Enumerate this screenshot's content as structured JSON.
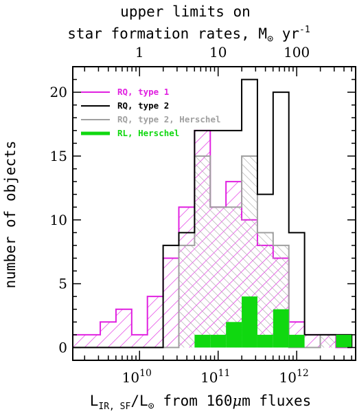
{
  "chart_data": {
    "type": "bar",
    "title_top_line1": "upper limits on",
    "title_top_line2": "star formation rates, M",
    "title_top_sun": "⊙",
    "title_top_unit": " yr",
    "title_top_exp": "-1",
    "xlabel_main": "L",
    "xlabel_sub": "IR, SF",
    "xlabel_mid": "/L",
    "xlabel_sun": "⊙",
    "xlabel_rest": " from 160",
    "xlabel_mu": "μ",
    "xlabel_end": "m fluxes",
    "ylabel": "number of objects",
    "x_scale": "log",
    "xlim_log10": [
      9.15,
      12.75
    ],
    "ylim": [
      -1,
      22
    ],
    "yticks": [
      0,
      5,
      10,
      15,
      20
    ],
    "xticks_bottom": [
      {
        "log10": 10,
        "base": "10",
        "exp": "10"
      },
      {
        "log10": 11,
        "base": "10",
        "exp": "11"
      },
      {
        "log10": 12,
        "base": "10",
        "exp": "12"
      }
    ],
    "xticks_top": [
      {
        "sfr": 1,
        "label": "1"
      },
      {
        "sfr": 10,
        "label": "10"
      },
      {
        "sfr": 100,
        "label": "100"
      }
    ],
    "bin_edges_log10": [
      9.1,
      9.3,
      9.5,
      9.7,
      9.9,
      10.1,
      10.3,
      10.5,
      10.7,
      10.9,
      11.1,
      11.3,
      11.5,
      11.7,
      11.9,
      12.1,
      12.3,
      12.5,
      12.7
    ],
    "legend_position": "top-left",
    "series": [
      {
        "name": "RQ, type 1",
        "color": "#e020e0",
        "fill": "hatch-pink",
        "values": [
          1,
          1,
          2,
          3,
          1,
          4,
          7,
          11,
          17,
          11,
          13,
          10,
          8,
          7,
          2,
          1,
          1,
          0
        ]
      },
      {
        "name": "RQ, type 2",
        "color": "#000000",
        "fill": "none",
        "values": [
          0,
          0,
          0,
          0,
          0,
          0,
          8,
          9,
          17,
          17,
          17,
          21,
          12,
          20,
          9,
          1,
          1,
          1
        ]
      },
      {
        "name": "RQ, type 2, Herschel",
        "color": "#a0a0a0",
        "fill": "hatch-grey",
        "values": [
          0,
          0,
          0,
          0,
          0,
          0,
          0,
          8,
          15,
          11,
          11,
          15,
          9,
          8,
          0,
          0,
          1,
          1
        ]
      },
      {
        "name": "RL, Herschel",
        "color": "#10d810",
        "fill": "solid-green",
        "values": [
          0,
          0,
          0,
          0,
          0,
          0,
          0,
          0,
          1,
          1,
          2,
          4,
          1,
          3,
          1,
          0,
          0,
          1
        ]
      }
    ]
  }
}
